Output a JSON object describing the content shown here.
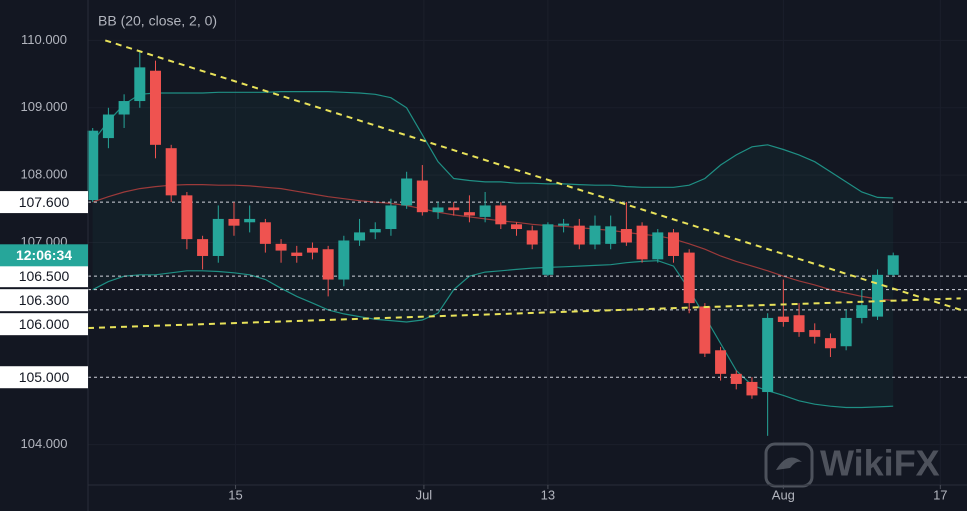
{
  "chart_data": {
    "type": "candlestick",
    "indicator": "BB (20, close, 2, 0)",
    "countdown": "12:06:34",
    "watermark": "WikiFX",
    "up_color": "#26a69a",
    "down_color": "#ef5350",
    "band_color": "#1f8f84",
    "basis_color": "#9c3a3a",
    "trend_color": "#e8e25a",
    "grid": true,
    "xlim": [
      -0.3,
      55.7
    ],
    "ylim": [
      103.4,
      110.6
    ],
    "xticks": [
      {
        "value": 9.1,
        "label": "15"
      },
      {
        "value": 21.1,
        "label": "Jul"
      },
      {
        "value": 29.0,
        "label": "13"
      },
      {
        "value": 44.0,
        "label": "Aug"
      },
      {
        "value": 54.0,
        "label": "17"
      }
    ],
    "yticks": [
      {
        "value": 104,
        "label": "104.000"
      },
      {
        "value": 107,
        "label": "107.000"
      },
      {
        "value": 108,
        "label": "108.000"
      },
      {
        "value": 109,
        "label": "109.000"
      },
      {
        "value": 110,
        "label": "110.000"
      }
    ],
    "levels": [
      {
        "value": 107.6,
        "label": "107.600"
      },
      {
        "value": 106.5,
        "label": "106.500"
      },
      {
        "value": 106.3,
        "label": "106.300"
      },
      {
        "value": 106.0,
        "label": "106.000"
      },
      {
        "value": 105.0,
        "label": "105.000"
      }
    ],
    "trendlines": [
      {
        "x": [
          0.8,
          55.3
        ],
        "y": [
          110.0,
          106.0
        ]
      },
      {
        "x": [
          -0.3,
          55.3
        ],
        "y": [
          105.73,
          106.17
        ]
      }
    ],
    "open": [
      107.63,
      108.55,
      108.9,
      109.1,
      109.55,
      108.4,
      107.7,
      107.05,
      106.8,
      107.35,
      107.3,
      107.3,
      106.98,
      106.85,
      106.92,
      106.9,
      106.45,
      107.03,
      107.15,
      107.2,
      107.55,
      107.92,
      107.45,
      107.52,
      107.45,
      107.38,
      107.55,
      107.27,
      107.18,
      106.52,
      107.25,
      107.25,
      106.97,
      106.98,
      107.2,
      107.25,
      106.75,
      107.15,
      106.85,
      106.05,
      105.4,
      105.05,
      104.93,
      104.78,
      105.9,
      105.92,
      105.7,
      105.58,
      105.46,
      105.88,
      105.9,
      106.52
    ],
    "high": [
      108.7,
      109.0,
      109.2,
      109.85,
      109.7,
      108.45,
      107.75,
      107.1,
      107.55,
      107.6,
      107.55,
      107.35,
      107.05,
      106.95,
      107.0,
      106.95,
      107.1,
      107.35,
      107.3,
      107.65,
      108.05,
      108.15,
      107.6,
      107.6,
      107.7,
      107.75,
      107.6,
      107.3,
      107.25,
      107.3,
      107.35,
      107.35,
      107.4,
      107.4,
      107.6,
      107.3,
      107.2,
      107.2,
      106.9,
      106.1,
      105.45,
      105.1,
      105.0,
      105.95,
      106.45,
      106.1,
      105.8,
      105.65,
      106.0,
      106.3,
      106.6,
      106.85
    ],
    "low": [
      107.6,
      108.4,
      108.7,
      109.0,
      108.25,
      107.6,
      106.9,
      106.6,
      106.7,
      107.1,
      107.15,
      106.85,
      106.7,
      106.7,
      106.75,
      106.2,
      106.35,
      106.95,
      107.05,
      107.1,
      107.5,
      107.4,
      107.35,
      107.4,
      107.3,
      107.3,
      107.2,
      107.1,
      106.9,
      106.5,
      107.15,
      106.9,
      106.9,
      106.9,
      106.95,
      106.7,
      106.7,
      106.7,
      105.95,
      105.3,
      104.95,
      104.82,
      104.68,
      104.13,
      105.75,
      105.6,
      105.5,
      105.3,
      105.4,
      105.8,
      105.85,
      106.5
    ],
    "close": [
      108.66,
      108.9,
      109.1,
      109.6,
      108.45,
      107.7,
      107.05,
      106.8,
      107.35,
      107.25,
      107.35,
      106.98,
      106.88,
      106.8,
      106.85,
      106.45,
      107.03,
      107.15,
      107.2,
      107.55,
      107.95,
      107.45,
      107.52,
      107.48,
      107.4,
      107.55,
      107.27,
      107.2,
      106.97,
      107.27,
      107.28,
      106.97,
      107.25,
      107.24,
      107.0,
      106.75,
      107.15,
      106.8,
      106.1,
      105.35,
      105.05,
      104.9,
      104.73,
      105.88,
      105.82,
      105.67,
      105.6,
      105.43,
      105.88,
      106.07,
      106.52,
      106.81
    ],
    "upper": [
      108.5,
      108.8,
      109.05,
      109.2,
      109.22,
      109.22,
      109.22,
      109.22,
      109.23,
      109.23,
      109.23,
      109.23,
      109.24,
      109.24,
      109.24,
      109.24,
      109.23,
      109.22,
      109.2,
      109.15,
      109.0,
      108.6,
      108.2,
      107.95,
      107.92,
      107.9,
      107.9,
      107.88,
      107.88,
      107.87,
      107.87,
      107.86,
      107.85,
      107.85,
      107.83,
      107.82,
      107.82,
      107.82,
      107.85,
      107.95,
      108.15,
      108.3,
      108.42,
      108.45,
      108.38,
      108.3,
      108.2,
      108.05,
      107.9,
      107.75,
      107.67,
      107.66
    ],
    "basis": [
      107.6,
      107.68,
      107.75,
      107.8,
      107.83,
      107.85,
      107.86,
      107.86,
      107.85,
      107.85,
      107.84,
      107.82,
      107.8,
      107.76,
      107.72,
      107.68,
      107.65,
      107.62,
      107.6,
      107.58,
      107.55,
      107.5,
      107.45,
      107.41,
      107.38,
      107.35,
      107.32,
      107.3,
      107.27,
      107.25,
      107.24,
      107.22,
      107.2,
      107.18,
      107.15,
      107.12,
      107.1,
      107.05,
      106.98,
      106.9,
      106.8,
      106.72,
      106.65,
      106.58,
      106.5,
      106.43,
      106.37,
      106.3,
      106.25,
      106.2,
      106.16,
      106.14
    ],
    "lower": [
      106.3,
      106.42,
      106.5,
      106.52,
      106.52,
      106.55,
      106.58,
      106.58,
      106.57,
      106.55,
      106.52,
      106.45,
      106.32,
      106.2,
      106.1,
      106.0,
      105.94,
      105.9,
      105.86,
      105.84,
      105.82,
      105.85,
      105.95,
      106.3,
      106.5,
      106.56,
      106.58,
      106.6,
      106.62,
      106.63,
      106.64,
      106.65,
      106.66,
      106.67,
      106.7,
      106.72,
      106.73,
      106.65,
      106.3,
      105.9,
      105.5,
      105.1,
      104.88,
      104.8,
      104.73,
      104.65,
      104.6,
      104.57,
      104.55,
      104.55,
      104.56,
      104.57
    ]
  }
}
